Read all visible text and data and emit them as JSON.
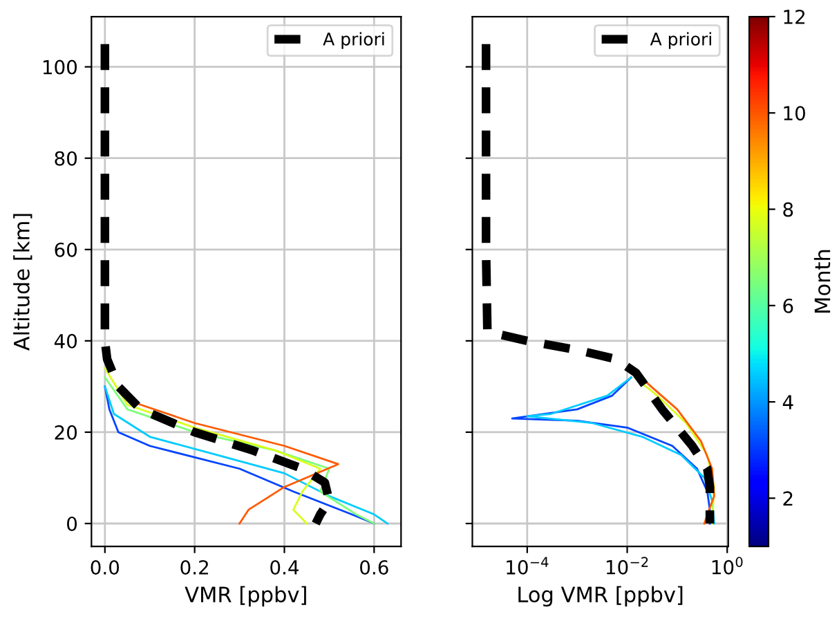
{
  "chart_data": [
    {
      "type": "line",
      "xlabel": "VMR [ppbv]",
      "ylabel": "Altitude [km]",
      "xlim": [
        -0.03,
        0.66
      ],
      "xticks": [
        {
          "value": 0,
          "label": "0.0"
        },
        {
          "value": 0.2,
          "label": "0.2"
        },
        {
          "value": 0.4,
          "label": "0.4"
        },
        {
          "value": 0.6,
          "label": "0.6"
        }
      ],
      "ylim": [
        -5,
        111
      ],
      "yticks": [
        0,
        20,
        40,
        60,
        80,
        100
      ],
      "grid": true,
      "legend": "top right",
      "series": [
        {
          "color": "#0044ff",
          "x": [
            0.0,
            0.01,
            0.03,
            0.1,
            0.3,
            0.42,
            0.55,
            0.6
          ],
          "values": [
            30,
            25,
            20,
            17,
            12,
            7,
            2,
            0
          ]
        },
        {
          "color": "#00ccff",
          "x": [
            0.0,
            0.02,
            0.1,
            0.25,
            0.4,
            0.5,
            0.6,
            0.63
          ],
          "values": [
            30,
            24,
            19,
            15,
            11,
            6,
            2,
            0
          ]
        },
        {
          "color": "#7dff7a",
          "x": [
            0.0,
            0.05,
            0.2,
            0.38,
            0.5,
            0.48,
            0.56,
            0.6
          ],
          "values": [
            32,
            25,
            20,
            16,
            12,
            7,
            2,
            0
          ]
        },
        {
          "color": "#d8ff1f",
          "x": [
            0.0,
            0.05,
            0.2,
            0.38,
            0.48,
            0.44,
            0.42,
            0.45
          ],
          "values": [
            34,
            26,
            21,
            16,
            12,
            7,
            3,
            0
          ]
        },
        {
          "color": "#ff5a00",
          "x": [
            0.05,
            0.2,
            0.4,
            0.52,
            0.4,
            0.32,
            0.3
          ],
          "values": [
            27,
            22,
            17,
            13,
            8,
            3,
            0
          ]
        },
        {
          "name": "A priori",
          "color": "#000000",
          "line_style": "dashed",
          "x": [
            0,
            0,
            0,
            0.005,
            0.03,
            0.08,
            0.2,
            0.33,
            0.44,
            0.49,
            0.5,
            0.48,
            0.47
          ],
          "values": [
            105,
            60,
            40,
            36,
            30,
            25,
            20,
            16,
            12,
            9,
            5,
            2,
            0
          ]
        }
      ]
    },
    {
      "type": "line",
      "xlabel": "Log VMR [ppbv]",
      "log": "x",
      "xlim": [
        8e-06,
        1.05
      ],
      "xticks": [
        {
          "value": 0.0001,
          "label": "10$^{−4}$"
        },
        {
          "value": 0.01,
          "label": "10$^{−2}$"
        },
        {
          "value": 1,
          "label": "10$^{0}$"
        }
      ],
      "ylim": [
        -5,
        111
      ],
      "yticks": [
        0,
        20,
        40,
        60,
        80,
        100
      ],
      "tick_labels": "x",
      "grid": true,
      "legend": "top right",
      "clabel": "Month",
      "clim": [
        1,
        12
      ],
      "cticks": [
        2,
        4,
        6,
        8,
        10,
        12
      ],
      "series": [
        {
          "color": "#0044ff",
          "x": [
            0.012,
            0.005,
            0.001,
            5e-05,
            0.001,
            0.01,
            0.08,
            0.25,
            0.4,
            0.45,
            0.45
          ],
          "values": [
            32,
            28,
            25,
            23,
            22.5,
            21,
            17,
            12,
            7,
            3,
            0
          ]
        },
        {
          "color": "#00ccff",
          "x": [
            0.012,
            0.004,
            0.0003,
            0.0001,
            0.002,
            0.02,
            0.12,
            0.35,
            0.5,
            0.55
          ],
          "values": [
            32,
            28,
            24,
            23.5,
            22,
            19,
            15,
            10,
            5,
            0
          ]
        },
        {
          "color": "#d8ff1f",
          "x": [
            0.014,
            0.04,
            0.15,
            0.4,
            0.55,
            0.5
          ],
          "values": [
            32,
            28,
            22,
            15,
            8,
            0
          ]
        },
        {
          "color": "#ff5a00",
          "x": [
            0.015,
            0.03,
            0.1,
            0.3,
            0.5,
            0.55,
            0.4,
            0.35
          ],
          "values": [
            33,
            30,
            25,
            18,
            12,
            6,
            2,
            0
          ]
        },
        {
          "name": "A priori",
          "color": "#000000",
          "line_style": "dashed",
          "x": [
            1.5e-05,
            1.5e-05,
            1.6e-05,
            0.0001,
            0.001,
            0.006,
            0.015,
            0.05,
            0.2,
            0.4,
            0.45,
            0.45
          ],
          "values": [
            105,
            60,
            42,
            40,
            38,
            36,
            33,
            25,
            17,
            12,
            8,
            0
          ]
        }
      ]
    }
  ]
}
